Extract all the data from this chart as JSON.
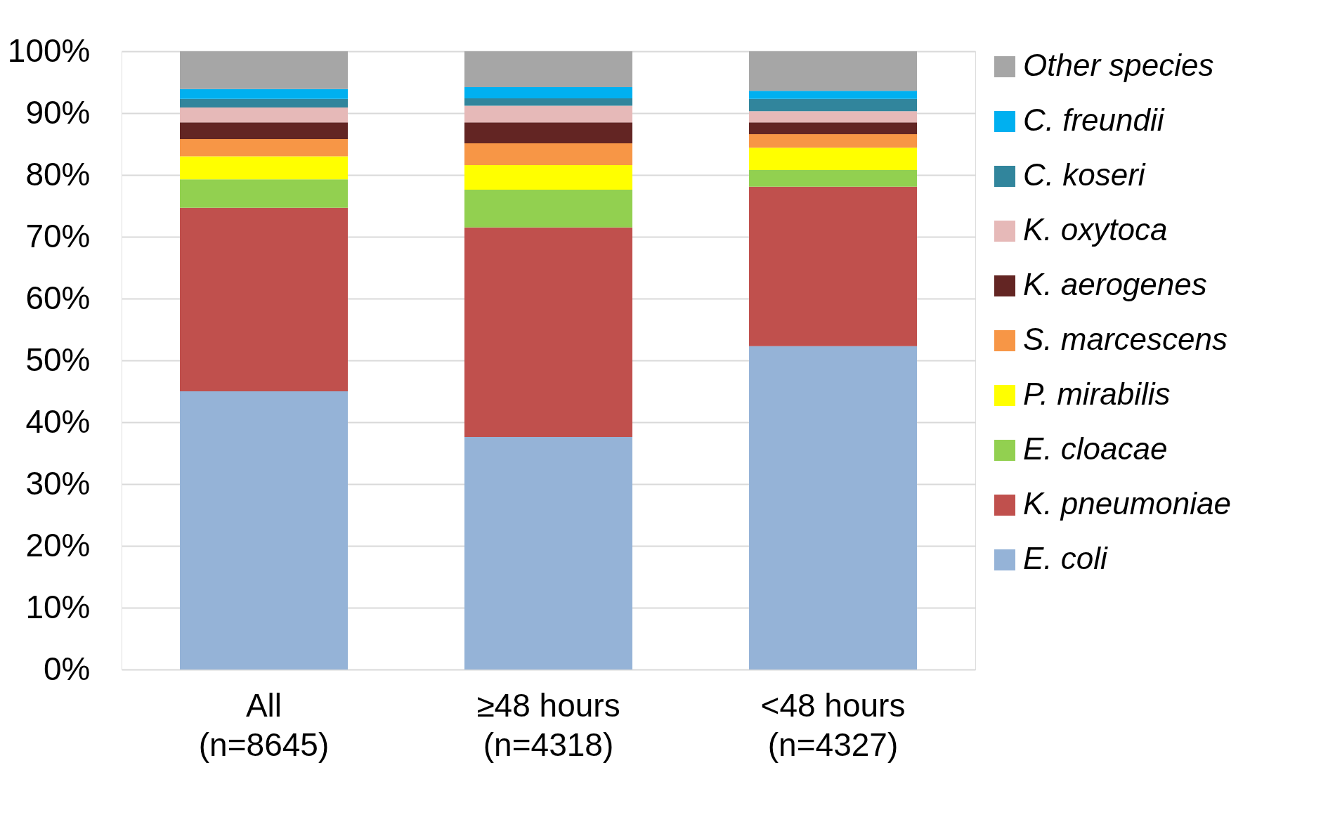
{
  "chart_data": {
    "type": "bar",
    "stacked": true,
    "categories": [
      "All\n(n=8645)",
      "≥48 hours\n(n=4318)",
      "<48 hours\n(n=4327)"
    ],
    "series": [
      {
        "name": "E. coli",
        "color": "#95b3d7",
        "values": [
          45.0,
          37.6,
          52.3
        ]
      },
      {
        "name": "K. pneumoniae",
        "color": "#c0504d",
        "values": [
          29.7,
          33.9,
          25.8
        ]
      },
      {
        "name": "E. cloacae",
        "color": "#92d050",
        "values": [
          4.6,
          6.1,
          2.7
        ]
      },
      {
        "name": "P. mirabilis",
        "color": "#ffff00",
        "values": [
          3.7,
          4.0,
          3.6
        ]
      },
      {
        "name": "S. marcescens",
        "color": "#f79646",
        "values": [
          2.8,
          3.5,
          2.2
        ]
      },
      {
        "name": "K. aerogenes",
        "color": "#632523",
        "values": [
          2.7,
          3.4,
          1.9
        ]
      },
      {
        "name": "K. oxytoca",
        "color": "#e6b9b8",
        "values": [
          2.4,
          2.7,
          1.8
        ]
      },
      {
        "name": "C. koseri",
        "color": "#31859c",
        "values": [
          1.4,
          1.2,
          2.0
        ]
      },
      {
        "name": "C. freundii",
        "color": "#00b0f0",
        "values": [
          1.6,
          1.8,
          1.3
        ]
      },
      {
        "name": "Other species",
        "color": "#a6a6a6",
        "values": [
          6.1,
          5.8,
          6.4
        ]
      }
    ],
    "ylim": [
      0,
      100
    ],
    "yticks": [
      {
        "value": 0,
        "label": "0%"
      },
      {
        "value": 10,
        "label": "10%"
      },
      {
        "value": 20,
        "label": "20%"
      },
      {
        "value": 30,
        "label": "30%"
      },
      {
        "value": 40,
        "label": "40%"
      },
      {
        "value": 50,
        "label": "50%"
      },
      {
        "value": 60,
        "label": "60%"
      },
      {
        "value": 70,
        "label": "70%"
      },
      {
        "value": 80,
        "label": "80%"
      },
      {
        "value": 90,
        "label": "90%"
      },
      {
        "value": 100,
        "label": "100%"
      }
    ],
    "grid": "y",
    "legend": "right"
  }
}
